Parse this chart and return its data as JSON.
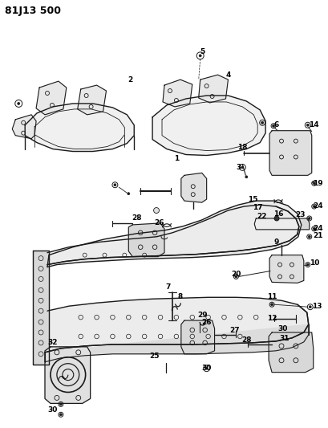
{
  "title": "81J13 500",
  "bg_color": "#ffffff",
  "line_color": "#1a1a1a",
  "figsize": [
    4.09,
    5.33
  ],
  "dpi": 100,
  "lfs": 6.5
}
